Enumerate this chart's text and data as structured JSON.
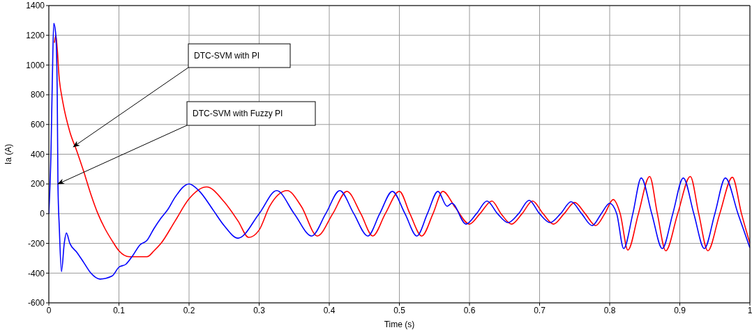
{
  "chart_data": {
    "type": "line",
    "xlabel": "Time (s)",
    "ylabel": "Ia (A)",
    "xlim": [
      0,
      1
    ],
    "xticks": [
      0,
      0.1,
      0.2,
      0.3,
      0.4,
      0.5,
      0.6,
      0.7,
      0.8,
      0.9,
      1
    ],
    "ylim": [
      -600,
      1400
    ],
    "yticks": [
      -600,
      -400,
      -200,
      0,
      200,
      400,
      600,
      800,
      1000,
      1200,
      1400
    ],
    "grid": true,
    "legend": false,
    "marker": "none",
    "line_style": "solid",
    "annotations": [
      {
        "text": "DTC-SVM with PI",
        "x": 0.035,
        "y": 450
      },
      {
        "text": "DTC-SVM with Fuzzy PI",
        "x": 0.013,
        "y": 200
      }
    ],
    "series": [
      {
        "color": "#ff0000",
        "x": [
          0.008,
          0.01,
          0.015,
          0.02,
          0.03,
          0.04,
          0.05,
          0.06,
          0.07,
          0.08,
          0.09,
          0.1,
          0.115,
          0.13,
          0.14,
          0.15,
          0.16,
          0.18,
          0.2,
          0.225,
          0.25,
          0.27,
          0.285,
          0.3,
          0.315,
          0.34,
          0.36,
          0.383,
          0.405,
          0.425,
          0.445,
          0.462,
          0.48,
          0.5,
          0.515,
          0.532,
          0.548,
          0.562,
          0.58,
          0.6,
          0.615,
          0.632,
          0.645,
          0.66,
          0.675,
          0.69,
          0.705,
          0.72,
          0.735,
          0.75,
          0.765,
          0.78,
          0.793,
          0.805,
          0.815,
          0.826,
          0.841,
          0.857,
          0.868,
          0.88,
          0.897,
          0.915,
          0.927,
          0.94,
          0.957,
          0.975,
          0.988,
          1
        ],
        "values": [
          1150,
          1200,
          900,
          750,
          550,
          420,
          280,
          130,
          0,
          -100,
          -180,
          -250,
          -290,
          -290,
          -290,
          -250,
          -200,
          -50,
          100,
          180,
          80,
          -50,
          -160,
          -110,
          50,
          155,
          50,
          -150,
          0,
          150,
          0,
          -150,
          0,
          150,
          0,
          -150,
          0,
          150,
          40,
          -70,
          0,
          85,
          0,
          -70,
          0,
          85,
          0,
          -70,
          0,
          75,
          0,
          -80,
          0,
          95,
          0,
          -245,
          0,
          250,
          0,
          -250,
          0,
          250,
          0,
          -250,
          0,
          245,
          0,
          -200
        ]
      },
      {
        "color": "#0000ff",
        "x": [
          0,
          0.003,
          0.005,
          0.007,
          0.01,
          0.012,
          0.013,
          0.015,
          0.018,
          0.022,
          0.025,
          0.03,
          0.04,
          0.05,
          0.06,
          0.073,
          0.09,
          0.1,
          0.11,
          0.12,
          0.13,
          0.14,
          0.15,
          0.16,
          0.17,
          0.18,
          0.2,
          0.215,
          0.235,
          0.25,
          0.27,
          0.3,
          0.325,
          0.35,
          0.375,
          0.395,
          0.415,
          0.435,
          0.455,
          0.472,
          0.49,
          0.508,
          0.525,
          0.54,
          0.555,
          0.568,
          0.575,
          0.595,
          0.61,
          0.625,
          0.64,
          0.655,
          0.67,
          0.685,
          0.7,
          0.715,
          0.73,
          0.745,
          0.76,
          0.775,
          0.788,
          0.8,
          0.81,
          0.82,
          0.833,
          0.845,
          0.86,
          0.875,
          0.89,
          0.905,
          0.92,
          0.935,
          0.95,
          0.965,
          0.983,
          1
        ],
        "values": [
          0,
          400,
          900,
          1280,
          1200,
          800,
          200,
          -100,
          -390,
          -200,
          -130,
          -200,
          -260,
          -330,
          -400,
          -440,
          -420,
          -360,
          -340,
          -280,
          -210,
          -180,
          -100,
          -30,
          30,
          110,
          200,
          150,
          20,
          -80,
          -165,
          0,
          155,
          0,
          -150,
          0,
          155,
          0,
          -150,
          0,
          150,
          0,
          -150,
          0,
          150,
          50,
          70,
          -70,
          0,
          85,
          0,
          -60,
          0,
          90,
          0,
          -60,
          0,
          80,
          0,
          -80,
          0,
          70,
          0,
          -235,
          0,
          240,
          0,
          -235,
          0,
          240,
          0,
          -235,
          0,
          240,
          0,
          -230
        ]
      }
    ]
  }
}
